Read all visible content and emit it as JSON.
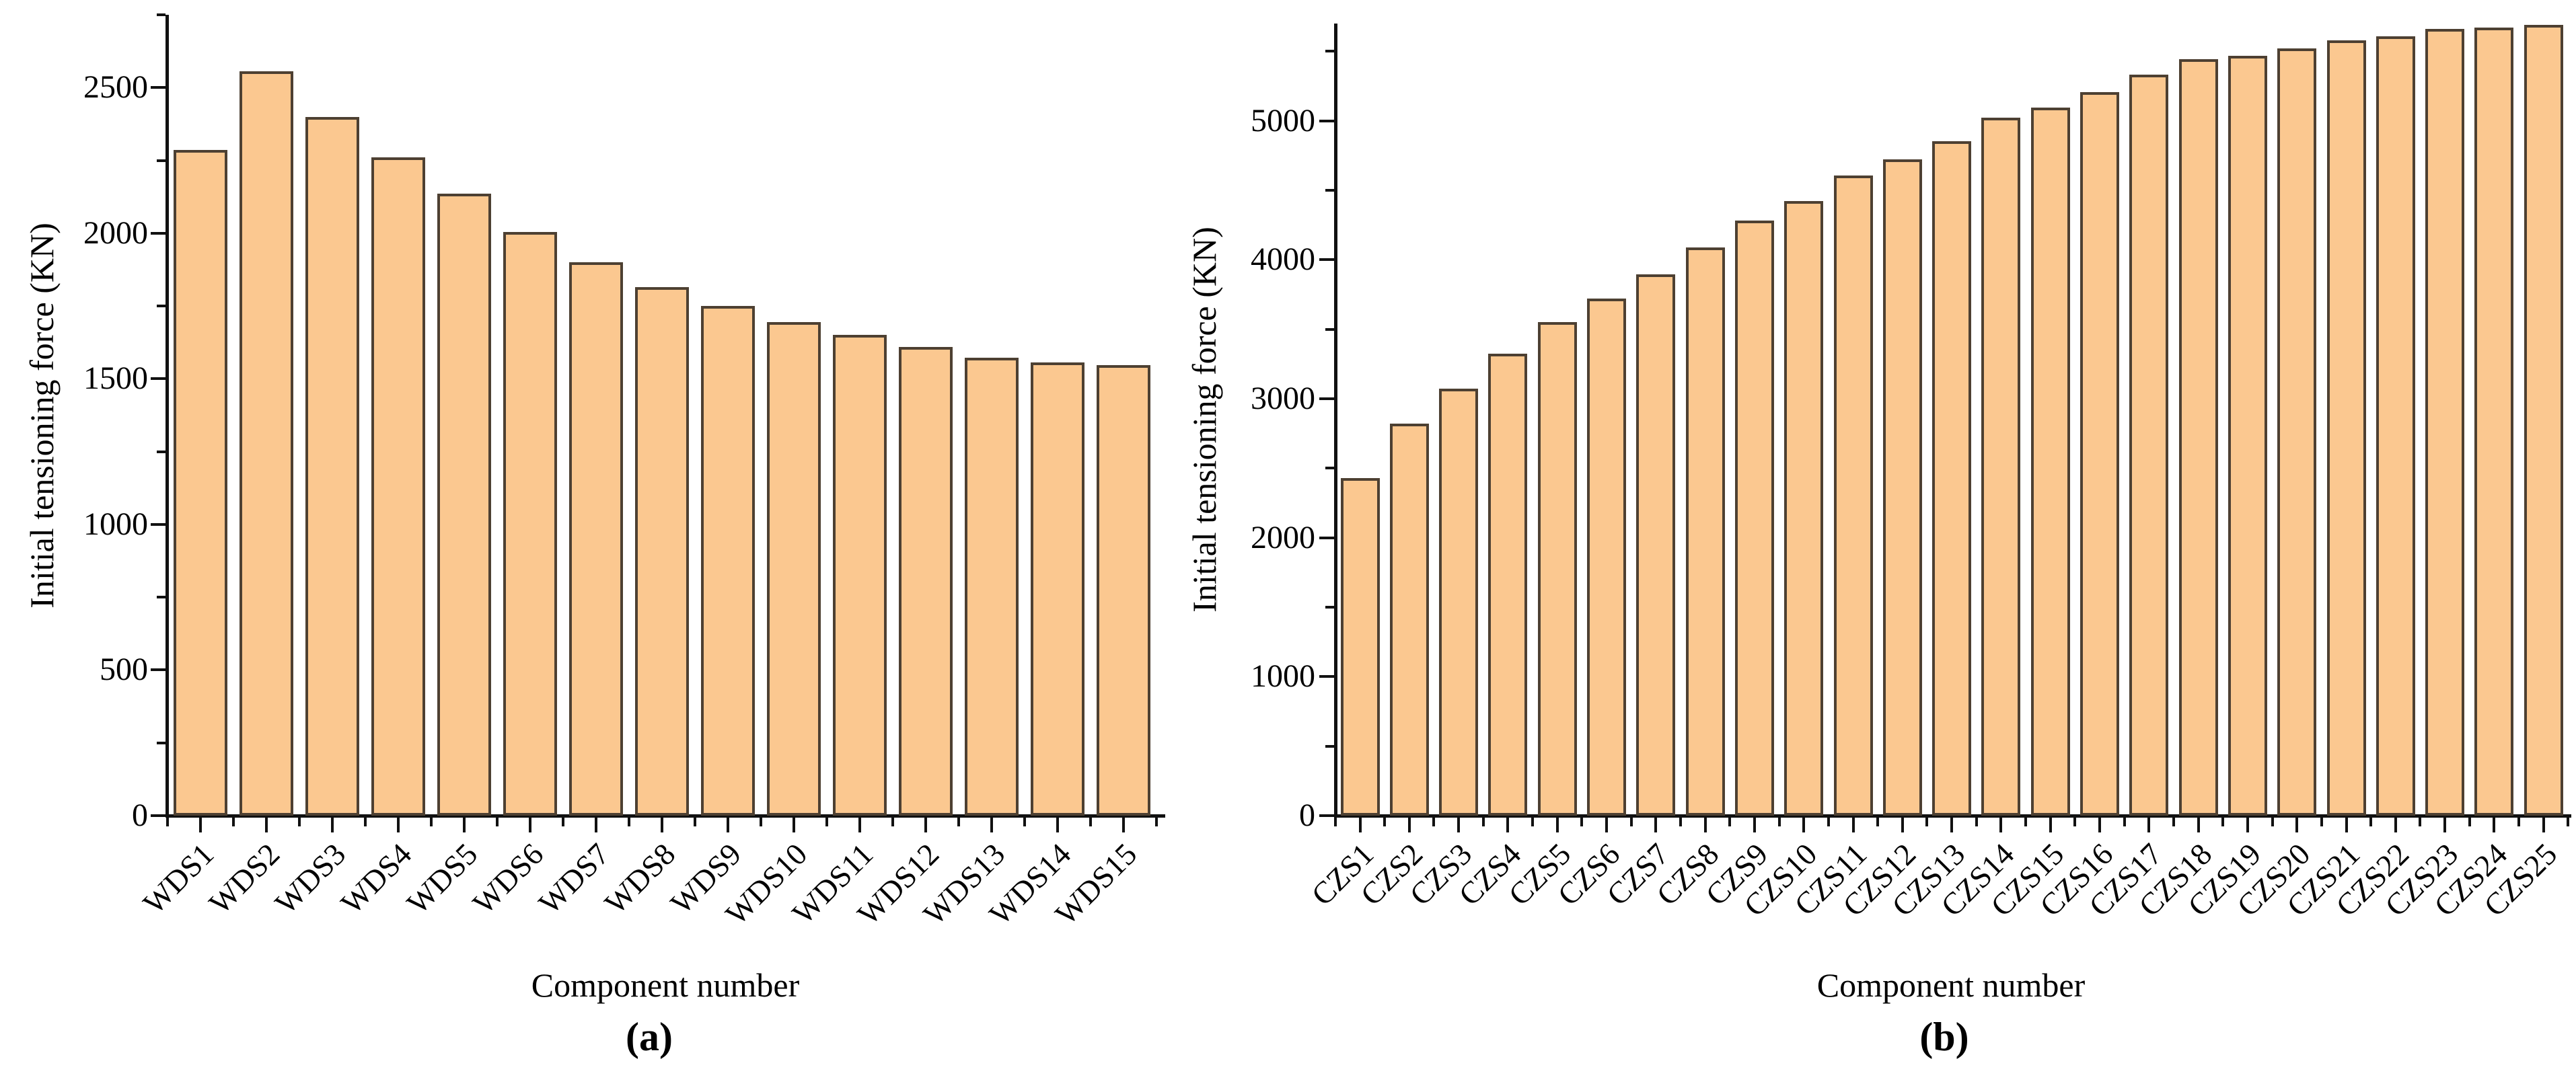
{
  "figure": {
    "background_color": "#ffffff",
    "bar_fill_color": "#fbc890",
    "bar_border_color": "#4d4032",
    "axis_color": "#111111",
    "text_color": "#000000"
  },
  "chart_data": [
    {
      "type": "bar",
      "panel_label": "(a)",
      "title": "",
      "xlabel": "Component number",
      "ylabel": "Initial tensioning force (KN)",
      "categories": [
        "WDS1",
        "WDS2",
        "WDS3",
        "WDS4",
        "WDS5",
        "WDS6",
        "WDS7",
        "WDS8",
        "WDS9",
        "WDS10",
        "WDS11",
        "WDS12",
        "WDS13",
        "WDS14",
        "WDS15"
      ],
      "values": [
        2285,
        2555,
        2400,
        2260,
        2135,
        2005,
        1900,
        1815,
        1750,
        1695,
        1650,
        1610,
        1572,
        1556,
        1548
      ],
      "ylim": [
        0,
        2750
      ],
      "ytick_labels": [
        0,
        500,
        1000,
        1500,
        2000,
        2500
      ],
      "ytick_minor_step": 250,
      "xtick_rotation_deg": 45,
      "grid": false,
      "legend": null
    },
    {
      "type": "bar",
      "panel_label": "(b)",
      "title": "",
      "xlabel": "Component number",
      "ylabel": "Initial tensioning force (KN)",
      "categories": [
        "CZS1",
        "CZS2",
        "CZS3",
        "CZS4",
        "CZS5",
        "CZS6",
        "CZS7",
        "CZS8",
        "CZS9",
        "CZS10",
        "CZS11",
        "CZS12",
        "CZS13",
        "CZS14",
        "CZS15",
        "CZS16",
        "CZS17",
        "CZS18",
        "CZS19",
        "CZS20",
        "CZS21",
        "CZS22",
        "CZS23",
        "CZS24",
        "CZS25"
      ],
      "values": [
        2430,
        2820,
        3075,
        3325,
        3550,
        3720,
        3895,
        4090,
        4280,
        4425,
        4605,
        4725,
        4855,
        5025,
        5095,
        5205,
        5330,
        5445,
        5470,
        5520,
        5580,
        5610,
        5660,
        5670,
        5690
      ],
      "ylim": [
        0,
        5700
      ],
      "ytick_labels": [
        0,
        1000,
        2000,
        3000,
        4000,
        5000
      ],
      "ytick_minor_step": 500,
      "xtick_rotation_deg": 45,
      "grid": false,
      "legend": null
    }
  ]
}
